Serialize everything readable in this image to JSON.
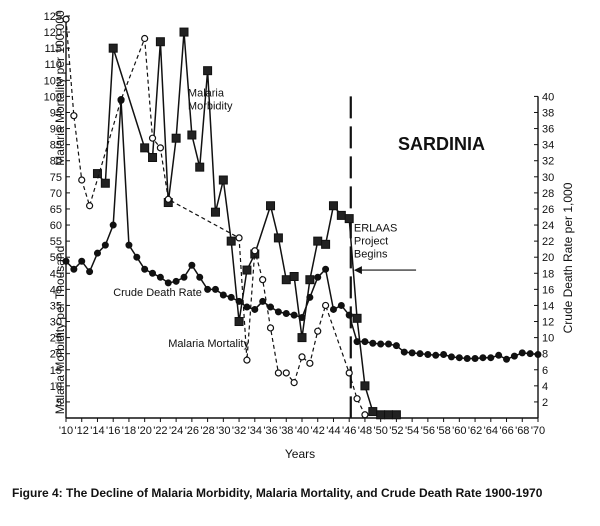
{
  "chart_data": {
    "type": "line",
    "title": "SARDINIA",
    "caption": "Figure 4: The Decline of Malaria Morbidity, Malaria Mortality, and Crude Death Rate 1900-1970",
    "xlabel": "Years",
    "ylabel_left_top": "Malaria Mortality per 100,000",
    "ylabel_left_bottom": "Malaria Morbidity per Thousand",
    "ylabel_right": "Crude Death Rate per 1,000",
    "x_tick_labels": [
      "'10",
      "'12",
      "'14",
      "'16",
      "'18",
      "'20",
      "'22",
      "'24",
      "'26",
      "'28",
      "'30",
      "'32",
      "'34",
      "'36",
      "'38",
      "'40",
      "'42",
      "'44",
      "'46",
      "'48",
      "'50",
      "'52",
      "'54",
      "'56",
      "'58",
      "'60",
      "'62",
      "'64",
      "'66",
      "'68",
      "'70"
    ],
    "xlim": [
      1910,
      1970
    ],
    "left_axis": {
      "ylim": [
        0,
        125
      ],
      "ticks": [
        5,
        10,
        15,
        20,
        25,
        30,
        35,
        40,
        45,
        50,
        55,
        60,
        65,
        70,
        75,
        80,
        85,
        90,
        95,
        100,
        105,
        110,
        115,
        120,
        125
      ]
    },
    "right_axis": {
      "ylim": [
        0,
        50
      ],
      "ticks": [
        2,
        4,
        6,
        8,
        10,
        12,
        14,
        16,
        18,
        20,
        22,
        24,
        26,
        28,
        30,
        32,
        34,
        36,
        38,
        40
      ]
    },
    "series": [
      {
        "name": "Malaria Morbidity",
        "axis": "left",
        "marker": "square",
        "style": "solid",
        "x": [
          1914,
          1915,
          1916,
          1920,
          1921,
          1922,
          1923,
          1924,
          1925,
          1926,
          1927,
          1928,
          1929,
          1930,
          1931,
          1932,
          1933,
          1934,
          1936,
          1937,
          1938,
          1939,
          1940,
          1941,
          1942,
          1943,
          1944,
          1945,
          1946,
          1947,
          1948,
          1949,
          1950,
          1951,
          1952
        ],
        "y": [
          76,
          73,
          115,
          84,
          81,
          117,
          67,
          87,
          120,
          88,
          78,
          108,
          64,
          74,
          55,
          30,
          46,
          51,
          66,
          56,
          43,
          44,
          25,
          43,
          55,
          54,
          66,
          63,
          62,
          31,
          10,
          2,
          1,
          1,
          1
        ]
      },
      {
        "name": "Malaria Mortality",
        "axis": "left",
        "marker": "circle-open",
        "style": "dashed",
        "x": [
          1910,
          1911,
          1912,
          1913,
          1917,
          1920,
          1921,
          1922,
          1923,
          1932,
          1933,
          1934,
          1935,
          1936,
          1937,
          1938,
          1939,
          1940,
          1941,
          1942,
          1943,
          1946,
          1947,
          1948
        ],
        "y": [
          124,
          94,
          74,
          66,
          99,
          118,
          87,
          84,
          68,
          56,
          18,
          52,
          43,
          28,
          14,
          14,
          11,
          19,
          17,
          27,
          35,
          14,
          6,
          1
        ]
      },
      {
        "name": "Crude Death Rate",
        "axis": "right",
        "marker": "circle-filled",
        "style": "solid",
        "x": [
          1910,
          1911,
          1912,
          1913,
          1914,
          1915,
          1916,
          1917,
          1918,
          1919,
          1920,
          1921,
          1922,
          1923,
          1924,
          1925,
          1926,
          1927,
          1928,
          1929,
          1930,
          1931,
          1932,
          1933,
          1934,
          1935,
          1936,
          1937,
          1938,
          1939,
          1940,
          1941,
          1942,
          1943,
          1944,
          1945,
          1946,
          1947,
          1948,
          1949,
          1950,
          1951,
          1952,
          1953,
          1954,
          1955,
          1956,
          1957,
          1958,
          1959,
          1960,
          1961,
          1962,
          1963,
          1964,
          1965,
          1966,
          1967,
          1968,
          1969,
          1970
        ],
        "y": [
          19.5,
          18.5,
          19.5,
          18.2,
          20.5,
          21.5,
          24,
          39.5,
          21.5,
          20,
          18.5,
          18,
          17.5,
          16.8,
          17,
          17.5,
          19,
          17.5,
          16,
          16,
          15.3,
          15,
          14.5,
          13.8,
          13.5,
          14.5,
          13.8,
          13.2,
          13,
          12.8,
          12.5,
          15,
          17.5,
          18.5,
          13.5,
          14,
          12.8,
          9.5,
          9.5,
          9.3,
          9.2,
          9.2,
          9,
          8.2,
          8.1,
          8,
          7.9,
          7.8,
          7.9,
          7.6,
          7.5,
          7.4,
          7.4,
          7.5,
          7.5,
          7.8,
          7.3,
          7.7,
          8.1,
          8,
          7.9
        ]
      }
    ],
    "annotations": [
      {
        "text_lines": [
          "Malaria",
          "Morbidity"
        ],
        "x": 1925.5,
        "y_left": 100,
        "align": "left"
      },
      {
        "text_lines": [
          "Crude Death Rate"
        ],
        "x": 1916,
        "y_left": 38,
        "align": "left"
      },
      {
        "text_lines": [
          "Malaria Mortality"
        ],
        "x": 1923,
        "y_left": 22,
        "align": "left"
      },
      {
        "text_lines": [
          "ERLAAS",
          "Project",
          "Begins"
        ],
        "x": 1946.6,
        "y_left": 58,
        "align": "left"
      }
    ],
    "vertical_marker": {
      "x": 1946.2,
      "style": "long-dash",
      "label": "ERLAAS Project Begins"
    },
    "arrow": {
      "from_x": 1954.5,
      "to_x": 1946.6,
      "y_left": 46
    }
  }
}
